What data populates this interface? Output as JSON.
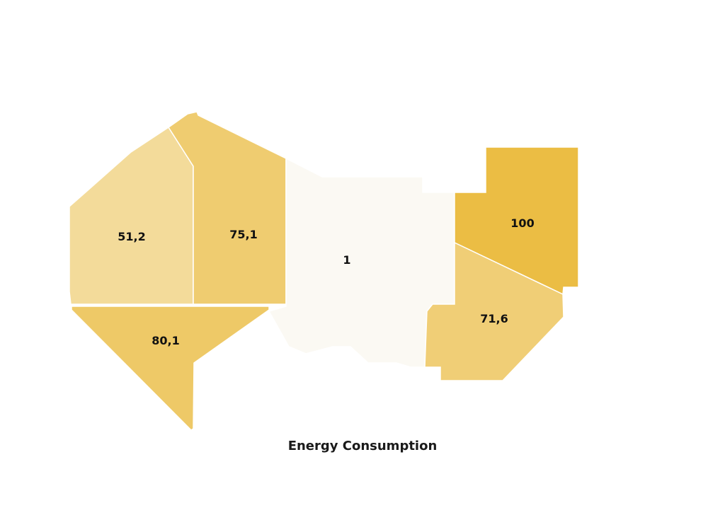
{
  "title": "Energy Consumption",
  "colors": {
    "low": "#fbf9f3",
    "high": "#ebbd44",
    "label_text": "#111111"
  },
  "regions": [
    {
      "id": "west-upper",
      "value": 51.2,
      "label": "51,2"
    },
    {
      "id": "north-center",
      "value": 75.1,
      "label": "75,1"
    },
    {
      "id": "southwest",
      "value": 80.1,
      "label": "80,1"
    },
    {
      "id": "center",
      "value": 1,
      "label": "1"
    },
    {
      "id": "northeast",
      "value": 100,
      "label": "100"
    },
    {
      "id": "southeast",
      "value": 71.6,
      "label": "71,6"
    }
  ]
}
